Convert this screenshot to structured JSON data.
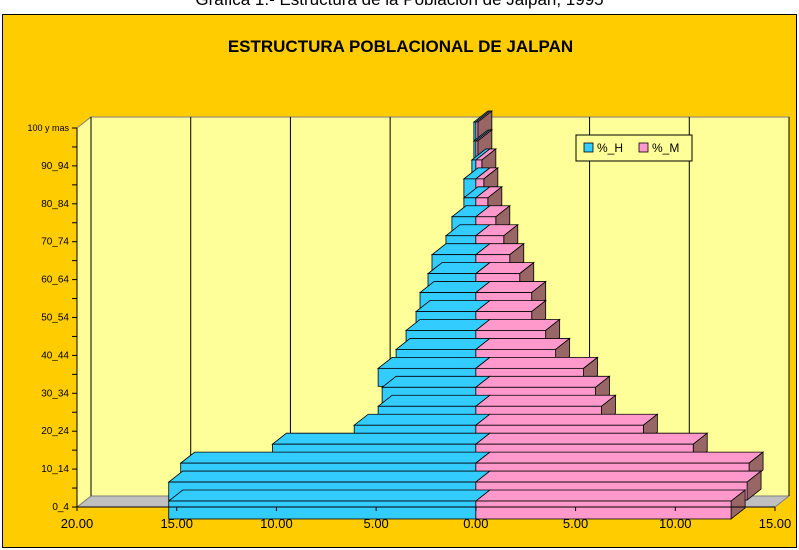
{
  "page_caption": "Gráfica 1.-  Estructura de la Población de Jalpan, 1995",
  "chart_data": {
    "type": "bar",
    "orientation": "horizontal",
    "style": "population-pyramid-3d",
    "title": "ESTRUCTURA POBLACIONAL DE JALPAN",
    "xlabel": "",
    "ylabel": "",
    "xlim": [
      -20,
      15
    ],
    "x_ticks": [
      "20.00",
      "15.00",
      "10.00",
      "5.00",
      "0.00",
      "5.00",
      "10.00",
      "15.00"
    ],
    "categories": [
      "0_4",
      "5_9",
      "10_14",
      "15_19",
      "20_24",
      "25_29",
      "30_34",
      "35_39",
      "40_44",
      "45_49",
      "50_54",
      "55_59",
      "60_64",
      "65_69",
      "70_74",
      "75_79",
      "80_84",
      "85_89",
      "90_94",
      "95_99",
      "100 y mas"
    ],
    "category_labels": [
      "0_4",
      "",
      "10_14",
      "",
      "20_24",
      "",
      "30_34",
      "",
      "40_44",
      "",
      "50_54",
      "",
      "60_64",
      "",
      "70_74",
      "",
      "80_84",
      "",
      "90_94",
      "",
      "100 y mas"
    ],
    "series": [
      {
        "name": "%_H",
        "values": [
          15.4,
          15.4,
          14.8,
          10.2,
          6.1,
          4.9,
          4.7,
          4.9,
          4.0,
          3.5,
          3.0,
          2.8,
          2.4,
          2.2,
          1.5,
          1.2,
          0.6,
          0.6,
          0.2,
          0.1,
          0.1
        ]
      },
      {
        "name": "%_M",
        "values": [
          12.8,
          13.6,
          13.7,
          10.9,
          8.4,
          6.3,
          6.0,
          5.4,
          4.0,
          3.5,
          2.8,
          2.8,
          2.2,
          1.7,
          1.4,
          1.0,
          0.6,
          0.4,
          0.3,
          0.1,
          0.1
        ]
      }
    ],
    "grid": true,
    "legend_position": "top-right",
    "colors": {
      "hombres": "#33ccff",
      "mujeres": "#ff99cc",
      "depth": "#996666",
      "plot_background": "#ffff99",
      "chart_background": "#ffcc00",
      "floor": "#c0c0c0"
    }
  }
}
